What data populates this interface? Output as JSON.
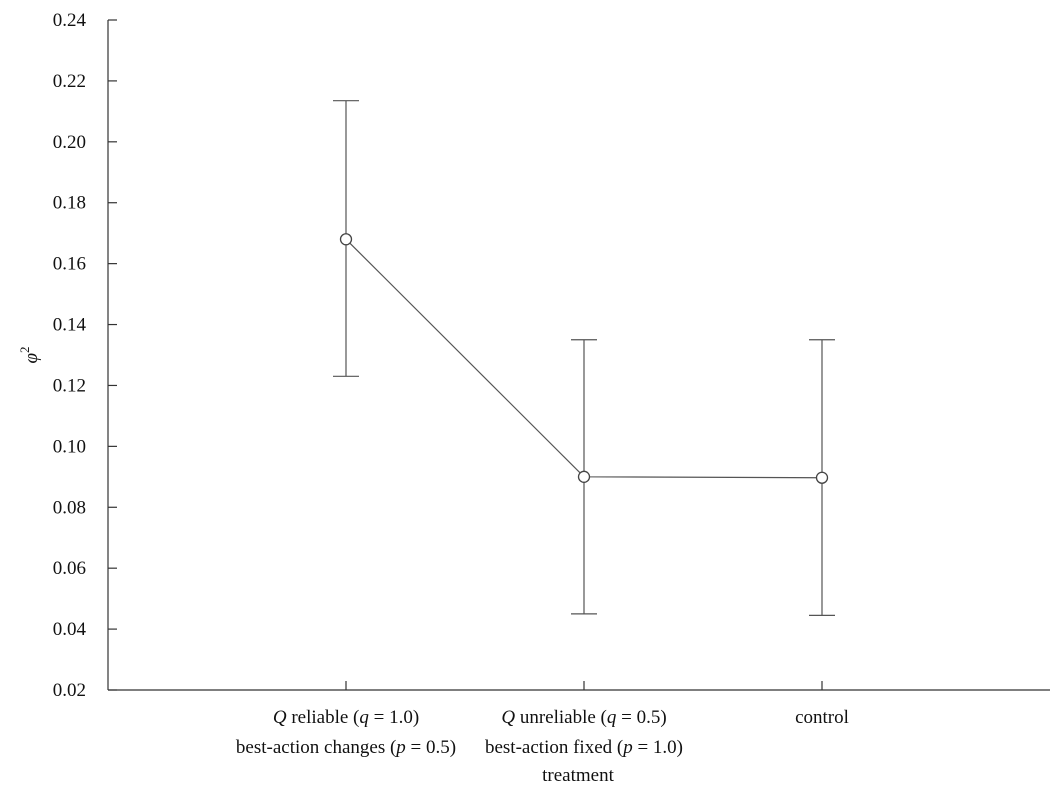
{
  "chart_data": {
    "type": "line",
    "xlabel": "treatment",
    "ylabel": "φ",
    "ylabel_superscript": "2",
    "ylim": [
      0.02,
      0.24
    ],
    "yticks": [
      "0.02",
      "0.04",
      "0.06",
      "0.08",
      "0.10",
      "0.12",
      "0.14",
      "0.16",
      "0.18",
      "0.20",
      "0.22",
      "0.24"
    ],
    "categories": [
      {
        "line1_italic": "Q",
        "line1_a": " reliable (",
        "line1_var": "q",
        "line1_b": " = 1.0)",
        "line2_a": "best-action changes (",
        "line2_var": "p",
        "line2_b": " = 0.5)"
      },
      {
        "line1_italic": "Q",
        "line1_a": " unreliable (",
        "line1_var": "q",
        "line1_b": " = 0.5)",
        "line2_a": "best-action fixed (",
        "line2_var": "p",
        "line2_b": " = 1.0)"
      },
      {
        "line1_italic": "",
        "line1_a": "control",
        "line1_var": "",
        "line1_b": "",
        "line2_a": "",
        "line2_var": "",
        "line2_b": ""
      }
    ],
    "values": [
      0.168,
      0.09,
      0.0897
    ],
    "error_upper": [
      0.2135,
      0.135,
      0.135
    ],
    "error_lower": [
      0.123,
      0.045,
      0.0445
    ],
    "grid": false,
    "legend": "none"
  }
}
